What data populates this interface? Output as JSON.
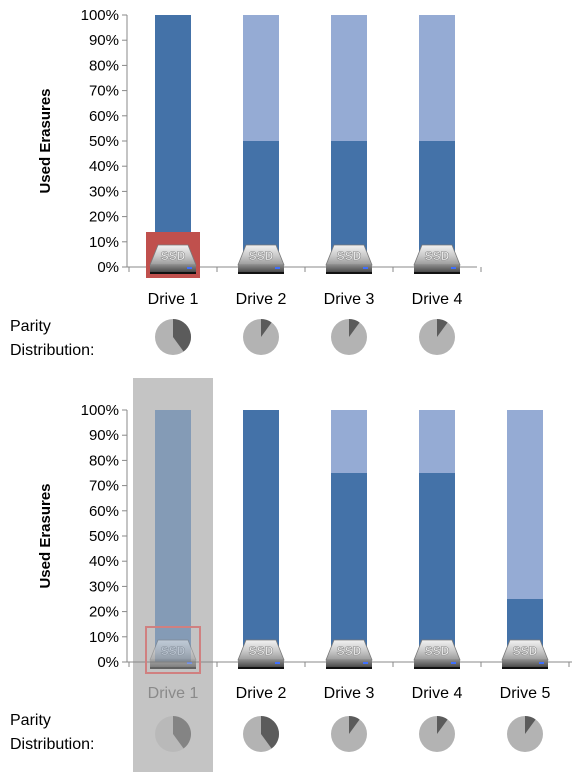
{
  "chart_data": [
    {
      "type": "bar",
      "stacked": true,
      "categories": [
        "Drive 1",
        "Drive 2",
        "Drive 3",
        "Drive 4"
      ],
      "series": [
        {
          "values": [
            100,
            50,
            50,
            50
          ],
          "color": "#4472A8"
        },
        {
          "values": [
            0,
            50,
            50,
            50
          ],
          "color": "#95ABD4"
        }
      ],
      "ylabel": "Used Erasures",
      "yticks": [
        "0%",
        "10%",
        "20%",
        "30%",
        "40%",
        "50%",
        "60%",
        "70%",
        "80%",
        "90%",
        "100%"
      ],
      "ylim": [
        0,
        100
      ],
      "ssd_icon_label": "SSD",
      "highlighted_icon": "Drive 1",
      "parity_label_line1": "Parity",
      "parity_label_line2": "Distribution:",
      "parity_shares": [
        0.4,
        0.1,
        0.1,
        0.1
      ]
    },
    {
      "type": "bar",
      "stacked": true,
      "categories": [
        "Drive 1",
        "Drive 2",
        "Drive 3",
        "Drive 4",
        "Drive 5"
      ],
      "series": [
        {
          "values": [
            100,
            100,
            75,
            75,
            25
          ],
          "color": "#4472A8"
        },
        {
          "values": [
            0,
            0,
            25,
            25,
            75
          ],
          "color": "#95ABD4"
        }
      ],
      "ylabel": "Used Erasures",
      "yticks": [
        "0%",
        "10%",
        "20%",
        "30%",
        "40%",
        "50%",
        "60%",
        "70%",
        "80%",
        "90%",
        "100%"
      ],
      "ylim": [
        0,
        100
      ],
      "ssd_icon_label": "SSD",
      "failed_drive": "Drive 1",
      "parity_label_line1": "Parity",
      "parity_label_line2": "Distribution:",
      "parity_shares": [
        0.4,
        0.4,
        0.1,
        0.1,
        0.1
      ]
    }
  ]
}
